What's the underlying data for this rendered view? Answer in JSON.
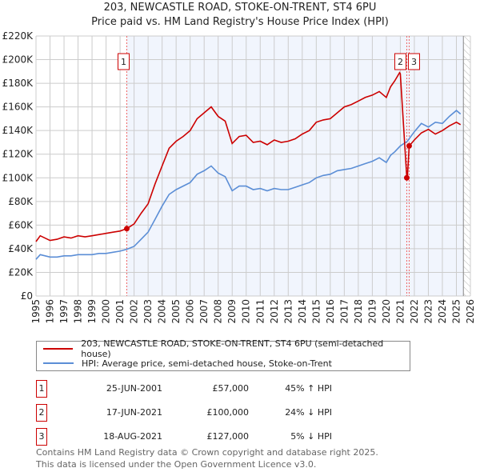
{
  "chart_data": {
    "type": "line",
    "title": "203, NEWCASTLE ROAD, STOKE-ON-TRENT, ST4 6PU",
    "subtitle": "Price paid vs. HM Land Registry's House Price Index (HPI)",
    "xlim": [
      1995,
      2026
    ],
    "ylim": [
      0,
      220000
    ],
    "x_ticks": [
      "1995",
      "1996",
      "1997",
      "1998",
      "1999",
      "2000",
      "2001",
      "2002",
      "2003",
      "2004",
      "2005",
      "2006",
      "2007",
      "2008",
      "2009",
      "2010",
      "2011",
      "2012",
      "2013",
      "2014",
      "2015",
      "2016",
      "2017",
      "2018",
      "2019",
      "2020",
      "2021",
      "2022",
      "2023",
      "2024",
      "2025",
      "2026"
    ],
    "y_ticks": [
      {
        "v": 0,
        "label": "£0"
      },
      {
        "v": 20000,
        "label": "£20K"
      },
      {
        "v": 40000,
        "label": "£40K"
      },
      {
        "v": 60000,
        "label": "£60K"
      },
      {
        "v": 80000,
        "label": "£80K"
      },
      {
        "v": 100000,
        "label": "£100K"
      },
      {
        "v": 120000,
        "label": "£120K"
      },
      {
        "v": 140000,
        "label": "£140K"
      },
      {
        "v": 160000,
        "label": "£160K"
      },
      {
        "v": 180000,
        "label": "£180K"
      },
      {
        "v": 200000,
        "label": "£200K"
      },
      {
        "v": 220000,
        "label": "£220K"
      }
    ],
    "grid": true,
    "series": [
      {
        "name": "203, NEWCASTLE ROAD, STOKE-ON-TRENT, ST4 6PU (semi-detached house)",
        "color": "#cc0000",
        "x": [
          1995,
          1995.3,
          1996,
          1996.5,
          1997,
          1997.5,
          1998,
          1998.5,
          1999,
          1999.5,
          2000,
          2000.5,
          2001,
          2001.48,
          2002,
          2002.5,
          2003,
          2003.5,
          2004,
          2004.5,
          2005,
          2005.5,
          2006,
          2006.5,
          2007,
          2007.5,
          2008,
          2008.5,
          2009,
          2009.5,
          2010,
          2010.5,
          2011,
          2011.5,
          2012,
          2012.5,
          2013,
          2013.5,
          2014,
          2014.5,
          2015,
          2015.5,
          2016,
          2016.5,
          2017,
          2017.5,
          2018,
          2018.5,
          2019,
          2019.5,
          2020,
          2020.3,
          2020.6,
          2020.95,
          2021.0,
          2021.46,
          2021.5,
          2021.63,
          2022,
          2022.5,
          2023,
          2023.5,
          2024,
          2024.5,
          2025,
          2025.3
        ],
        "y": [
          46000,
          51000,
          47000,
          48000,
          50000,
          49000,
          51000,
          50000,
          51000,
          52000,
          53000,
          54000,
          55000,
          57000,
          61000,
          70000,
          78000,
          95000,
          110000,
          125000,
          131000,
          135000,
          140000,
          150000,
          155000,
          160000,
          152000,
          148000,
          129000,
          135000,
          136000,
          130000,
          131000,
          128000,
          132000,
          130000,
          131000,
          133000,
          137000,
          140000,
          147000,
          149000,
          150000,
          155000,
          160000,
          162000,
          165000,
          168000,
          170000,
          173000,
          168000,
          177000,
          182000,
          189000,
          188000,
          100000,
          100000,
          127000,
          132000,
          138000,
          141000,
          137000,
          140000,
          144000,
          147000,
          145000
        ]
      },
      {
        "name": "HPI: Average price, semi-detached house, Stoke-on-Trent",
        "color": "#5b8ed6",
        "x": [
          1995,
          1995.3,
          1996,
          1996.5,
          1997,
          1997.5,
          1998,
          1998.5,
          1999,
          1999.5,
          2000,
          2000.5,
          2001,
          2001.48,
          2002,
          2002.5,
          2003,
          2003.5,
          2004,
          2004.5,
          2005,
          2005.5,
          2006,
          2006.5,
          2007,
          2007.5,
          2008,
          2008.5,
          2009,
          2009.5,
          2010,
          2010.5,
          2011,
          2011.5,
          2012,
          2012.5,
          2013,
          2013.5,
          2014,
          2014.5,
          2015,
          2015.5,
          2016,
          2016.5,
          2017,
          2017.5,
          2018,
          2018.5,
          2019,
          2019.5,
          2020,
          2020.3,
          2020.6,
          2021,
          2021.5,
          2022,
          2022.5,
          2023,
          2023.5,
          2024,
          2024.5,
          2025,
          2025.3
        ],
        "y": [
          31000,
          35000,
          33000,
          33000,
          34000,
          34000,
          35000,
          35000,
          35000,
          36000,
          36000,
          37000,
          38000,
          39500,
          42000,
          48000,
          54000,
          65000,
          76000,
          86000,
          90000,
          93000,
          96000,
          103000,
          106000,
          110000,
          104000,
          101000,
          89000,
          93000,
          93000,
          90000,
          91000,
          89000,
          91000,
          90000,
          90000,
          92000,
          94000,
          96000,
          100000,
          102000,
          103000,
          106000,
          107000,
          108000,
          110000,
          112000,
          114000,
          117000,
          113000,
          119000,
          122000,
          127000,
          131000,
          139000,
          146000,
          143000,
          147000,
          146000,
          152000,
          157000,
          154000
        ]
      }
    ],
    "sales": [
      {
        "id": "1",
        "x": 2001.48,
        "y": 57000,
        "date": "25-JUN-2001",
        "price": "£57,000",
        "hpi": "45% ↑ HPI"
      },
      {
        "id": "2",
        "x": 2021.46,
        "y": 100000,
        "date": "17-JUN-2021",
        "price": "£100,000",
        "hpi": "24% ↓ HPI"
      },
      {
        "id": "3",
        "x": 2021.63,
        "y": 127000,
        "date": "18-AUG-2021",
        "price": "£127,000",
        "hpi": "5% ↓ HPI"
      }
    ],
    "shaded_from": 2001.48,
    "hatched_from": 2025.5
  },
  "legend": {
    "red": "203, NEWCASTLE ROAD, STOKE-ON-TRENT, ST4 6PU (semi-detached house)",
    "blue": "HPI: Average price, semi-detached house, Stoke-on-Trent"
  },
  "footer": {
    "line1": "Contains HM Land Registry data © Crown copyright and database right 2025.",
    "line2": "This data is licensed under the Open Government Licence v3.0."
  }
}
